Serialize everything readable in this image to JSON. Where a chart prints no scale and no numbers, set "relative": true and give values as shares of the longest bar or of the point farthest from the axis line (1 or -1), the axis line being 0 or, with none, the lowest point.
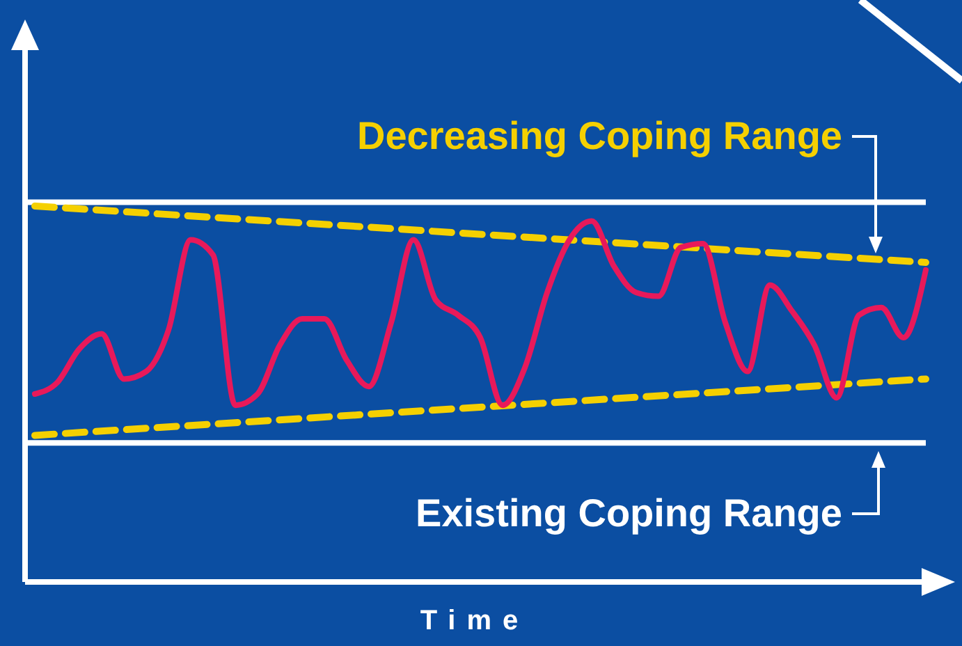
{
  "chart_data": {
    "type": "line",
    "relative": true,
    "xlabel": "Time",
    "marker": "none",
    "categories": [
      null,
      null,
      null,
      null,
      null,
      null,
      null,
      null,
      null,
      null,
      null,
      null,
      null,
      null,
      null,
      null,
      null,
      null,
      null,
      null,
      null,
      null,
      null,
      null,
      null,
      null,
      null,
      null,
      null,
      null,
      null,
      null,
      null,
      null,
      null,
      null,
      null,
      null,
      null,
      null,
      null
    ],
    "series": [
      {
        "color": "#e8195a",
        "line_style": "solid",
        "values": [
          0.5,
          0.53,
          0.62,
          0.66,
          0.54,
          0.56,
          0.67,
          0.91,
          0.87,
          0.47,
          0.5,
          0.63,
          0.7,
          0.7,
          0.59,
          0.52,
          0.69,
          0.91,
          0.75,
          0.71,
          0.65,
          0.47,
          0.57,
          0.77,
          0.91,
          0.96,
          0.84,
          0.77,
          0.76,
          0.89,
          0.9,
          0.69,
          0.56,
          0.79,
          0.72,
          0.63,
          0.49,
          0.71,
          0.73,
          0.65,
          0.83
        ]
      },
      {
        "color": "#f5d000",
        "line_style": "dashed",
        "values": [
          1,
          null,
          null,
          null,
          null,
          null,
          null,
          null,
          null,
          null,
          null,
          null,
          null,
          null,
          null,
          null,
          null,
          null,
          null,
          null,
          null,
          null,
          null,
          null,
          null,
          null,
          null,
          null,
          null,
          null,
          null,
          null,
          null,
          null,
          null,
          null,
          null,
          null,
          null,
          null,
          0.85
        ]
      },
      {
        "color": "#f5d000",
        "line_style": "dashed",
        "values": [
          0.39,
          null,
          null,
          null,
          null,
          null,
          null,
          null,
          null,
          null,
          null,
          null,
          null,
          null,
          null,
          null,
          null,
          null,
          null,
          null,
          null,
          null,
          null,
          null,
          null,
          null,
          null,
          null,
          null,
          null,
          null,
          null,
          null,
          null,
          null,
          null,
          null,
          null,
          null,
          null,
          0.54
        ]
      }
    ],
    "ref_lines": [
      {
        "axis": "y",
        "value": 1.01,
        "color": "#ffffff"
      },
      {
        "axis": "y",
        "value": 0.37,
        "color": "#ffffff"
      }
    ],
    "annotations": [
      "Decreasing Coping Range",
      "Existing Coping Range"
    ]
  }
}
